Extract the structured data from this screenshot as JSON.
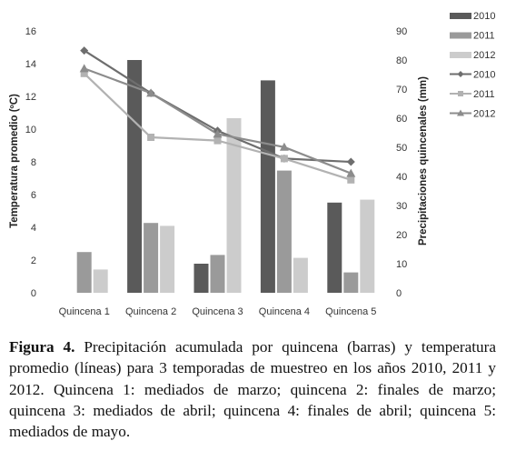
{
  "chart_data": {
    "type": "bar",
    "categories": [
      "Quincena 1",
      "Quincena 2",
      "Quincena 3",
      "Quincena 4",
      "Quincena 5"
    ],
    "y_left": {
      "label": "Temperatura promedio (ºC)",
      "ylim": [
        0,
        16
      ],
      "ticks": [
        0,
        2,
        4,
        6,
        8,
        10,
        12,
        14,
        16
      ]
    },
    "y_right": {
      "label": "Precipitaciones quincenales (mm)",
      "ylim": [
        0,
        90
      ],
      "ticks": [
        0,
        10,
        20,
        30,
        40,
        50,
        60,
        70,
        80,
        90
      ]
    },
    "bar_series": [
      {
        "name": "2010",
        "axis": "right",
        "color": "#5a5a5a",
        "values": [
          0,
          80,
          10,
          73,
          31
        ]
      },
      {
        "name": "2011",
        "axis": "right",
        "color": "#9a9a9a",
        "values": [
          14,
          24,
          13,
          42,
          7
        ]
      },
      {
        "name": "2012",
        "axis": "right",
        "color": "#cccccc",
        "values": [
          8,
          23,
          60,
          12,
          32
        ]
      }
    ],
    "line_series": [
      {
        "name": "2010",
        "axis": "left",
        "color": "#6e6e6e",
        "marker": "diamond",
        "values": [
          14.8,
          12.2,
          9.9,
          8.2,
          8.0
        ]
      },
      {
        "name": "2011",
        "axis": "left",
        "color": "#b2b2b2",
        "marker": "square",
        "values": [
          13.4,
          9.5,
          9.3,
          8.2,
          6.9
        ]
      },
      {
        "name": "2012",
        "axis": "left",
        "color": "#8c8c8c",
        "marker": "triangle",
        "values": [
          13.7,
          12.2,
          9.7,
          8.9,
          7.3
        ]
      }
    ],
    "legend": {
      "position": "right",
      "entries": [
        "2010",
        "2011",
        "2012",
        "2010",
        "2011",
        "2012"
      ]
    }
  },
  "caption": {
    "label": "Figura 4.",
    "text": " Precipitación acumulada por quincena (barras) y temperatura promedio (líneas) para 3 temporadas de muestreo en los años 2010, 2011 y 2012. Quincena 1: mediados de marzo; quincena 2: finales de marzo; quincena 3: mediados de abril; quincena 4: finales de abril; quincena 5: mediados de mayo."
  }
}
